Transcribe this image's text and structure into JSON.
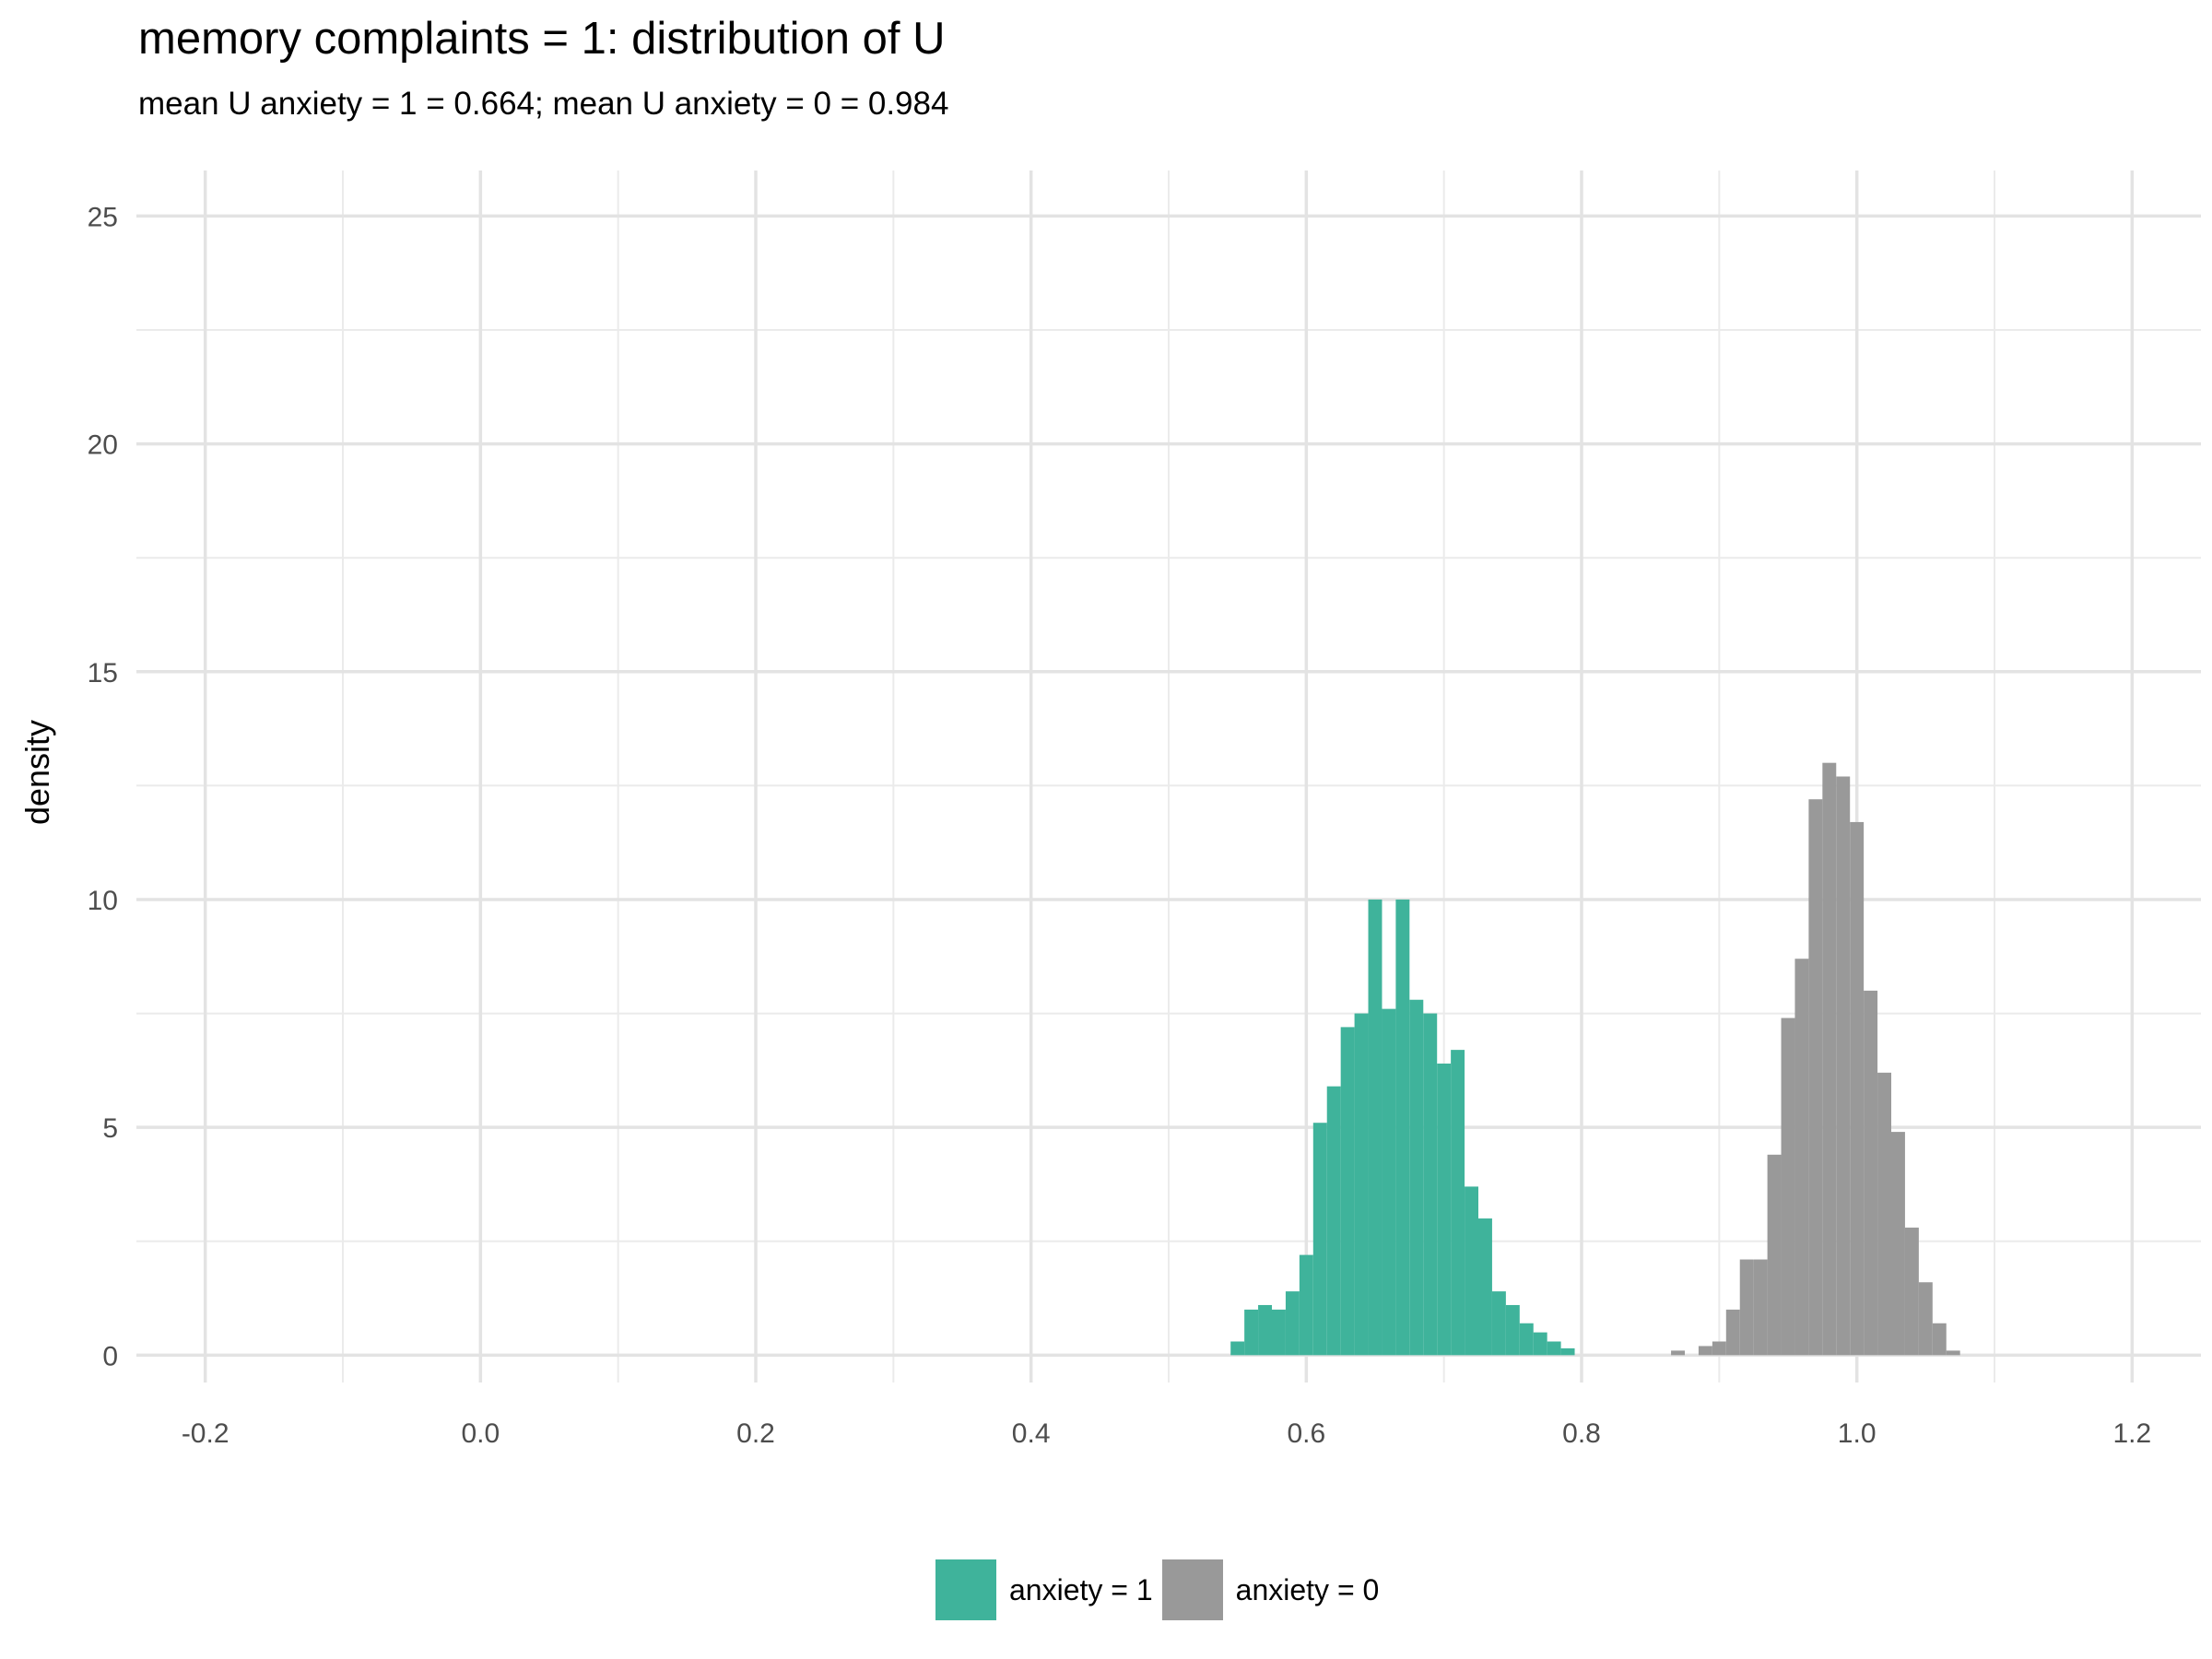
{
  "chart_data": {
    "type": "histogram",
    "title": "memory complaints = 1: distribution of U",
    "subtitle": "mean U anxiety = 1 = 0.664; mean U anxiety = 0 = 0.984",
    "xlabel": "",
    "ylabel": "density",
    "xlim": [
      -0.25,
      1.25
    ],
    "ylim": [
      -0.6,
      26
    ],
    "x_ticks": [
      -0.2,
      0.0,
      0.2,
      0.4,
      0.6,
      0.8,
      1.0,
      1.2
    ],
    "x_tick_labels": [
      "-0.2",
      "0.0",
      "0.2",
      "0.4",
      "0.6",
      "0.8",
      "1.0",
      "1.2"
    ],
    "y_ticks": [
      0,
      5,
      10,
      15,
      20,
      25
    ],
    "y_tick_labels": [
      "0",
      "5",
      "10",
      "15",
      "20",
      "25"
    ],
    "grid": true,
    "legend_position": "bottom",
    "bin_width": 0.01,
    "series": [
      {
        "name": "anxiety = 1",
        "color": "#3fb39b",
        "bins_start": 0.545,
        "density": [
          0.3,
          1.0,
          1.1,
          1.0,
          1.4,
          2.2,
          5.1,
          5.9,
          7.2,
          7.5,
          10.0,
          7.6,
          10.0,
          7.8,
          7.5,
          6.4,
          6.7,
          3.7,
          3.0,
          1.4,
          1.1,
          0.7,
          0.5,
          0.3,
          0.15
        ]
      },
      {
        "name": "anxiety = 0",
        "color": "#999999",
        "bins_start": 0.865,
        "density": [
          0.1,
          0.0,
          0.2,
          0.3,
          1.0,
          2.1,
          2.1,
          4.4,
          7.4,
          8.7,
          12.2,
          13.0,
          12.7,
          11.7,
          8.0,
          6.2,
          4.9,
          2.8,
          1.6,
          0.7,
          0.1
        ]
      }
    ]
  }
}
